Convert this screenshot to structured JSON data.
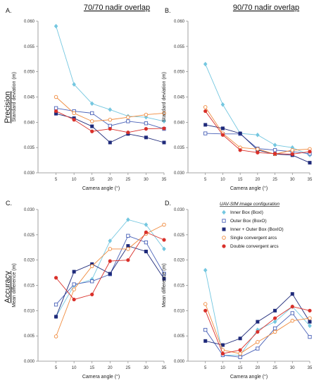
{
  "figure": {
    "column_titles": [
      "70/70 nadir overlap",
      "90/70 nadir overlap"
    ],
    "row_labels": [
      "Precision",
      "Accuracy"
    ]
  },
  "legend": {
    "title": "UAV-SfM image configuration",
    "placement": "inside panel D, top",
    "entries": [
      {
        "name": "Inner Box (BoxI)",
        "color": "#74c7e0",
        "marker": "diamond"
      },
      {
        "name": "Outer Box (BoxO)",
        "color": "#4a62b8",
        "marker": "square-open"
      },
      {
        "name": "Inner + Outer Box (BoxIO)",
        "color": "#1f2a7a",
        "marker": "square-filled"
      },
      {
        "name": "Single convergent arcs",
        "color": "#f08a3c",
        "marker": "circle-open"
      },
      {
        "name": "Double convergent arcs",
        "color": "#d9302a",
        "marker": "circle-filled"
      }
    ]
  },
  "chart_data": [
    {
      "panel": "A.",
      "type": "line",
      "xlabel": "Camera angle (°)",
      "ylabel": "Standard deviation (m)",
      "x": [
        5,
        10,
        15,
        20,
        25,
        30,
        35
      ],
      "xlim": [
        0,
        35
      ],
      "ylim": [
        0.03,
        0.06
      ],
      "yticks": [
        "0.030",
        "0.035",
        "0.040",
        "0.045",
        "0.050",
        "0.055",
        "0.060"
      ],
      "grid": false,
      "series": [
        {
          "name": "Inner Box (BoxI)",
          "values": [
            0.059,
            0.0475,
            0.0437,
            0.0425,
            0.0412,
            0.041,
            0.0402
          ]
        },
        {
          "name": "Outer Box (BoxO)",
          "values": [
            0.0428,
            0.0422,
            0.0418,
            0.0393,
            0.0402,
            0.0398,
            0.0387
          ]
        },
        {
          "name": "Inner + Outer Box (BoxIO)",
          "values": [
            0.0417,
            0.0408,
            0.0392,
            0.036,
            0.0377,
            0.037,
            0.036
          ]
        },
        {
          "name": "Single convergent arcs",
          "values": [
            0.045,
            0.0418,
            0.0402,
            0.0405,
            0.041,
            0.0415,
            0.0418
          ]
        },
        {
          "name": "Double convergent arcs",
          "values": [
            0.0422,
            0.0405,
            0.0382,
            0.0387,
            0.038,
            0.0387,
            0.0388
          ]
        }
      ]
    },
    {
      "panel": "B.",
      "type": "line",
      "xlabel": "Camera angle (°)",
      "ylabel": "Standard deviation (m)",
      "x": [
        5,
        10,
        15,
        20,
        25,
        30,
        35
      ],
      "xlim": [
        0,
        35
      ],
      "ylim": [
        0.03,
        0.06
      ],
      "yticks": [
        "0.030",
        "0.035",
        "0.040",
        "0.045",
        "0.050",
        "0.055",
        "0.060"
      ],
      "grid": false,
      "series": [
        {
          "name": "Inner Box (BoxI)",
          "values": [
            0.0515,
            0.0435,
            0.0378,
            0.0375,
            0.0355,
            0.035,
            0.0335
          ]
        },
        {
          "name": "Outer Box (BoxO)",
          "values": [
            0.0378,
            0.0377,
            0.0377,
            0.0348,
            0.0345,
            0.0342,
            0.0338
          ]
        },
        {
          "name": "Inner + Outer Box (BoxIO)",
          "values": [
            0.0395,
            0.0388,
            0.0378,
            0.0345,
            0.0337,
            0.0335,
            0.032
          ]
        },
        {
          "name": "Single convergent arcs",
          "values": [
            0.043,
            0.0378,
            0.035,
            0.0347,
            0.0337,
            0.0345,
            0.0347
          ]
        },
        {
          "name": "Double convergent arcs",
          "values": [
            0.0422,
            0.0375,
            0.0345,
            0.034,
            0.0338,
            0.0337,
            0.0342
          ]
        }
      ]
    },
    {
      "panel": "C.",
      "type": "line",
      "xlabel": "Camera angle (°)",
      "ylabel": "Mean difference (m)",
      "x": [
        5,
        10,
        15,
        20,
        25,
        30,
        35
      ],
      "xlim": [
        0,
        35
      ],
      "ylim": [
        0,
        0.03
      ],
      "yticks": [
        "0.000",
        "0.005",
        "0.010",
        "0.015",
        "0.020",
        "0.025",
        "0.030"
      ],
      "grid": false,
      "series": [
        {
          "name": "Inner Box (BoxI)",
          "values": [
            0.0088,
            0.015,
            0.0162,
            0.0238,
            0.028,
            0.027,
            0.0222
          ]
        },
        {
          "name": "Outer Box (BoxO)",
          "values": [
            0.0112,
            0.0152,
            0.0158,
            0.0172,
            0.0248,
            0.0235,
            0.0173
          ]
        },
        {
          "name": "Inner + Outer Box (BoxIO)",
          "values": [
            0.0088,
            0.0177,
            0.0192,
            0.0173,
            0.0228,
            0.0217,
            0.0163
          ]
        },
        {
          "name": "Single convergent arcs",
          "values": [
            0.0049,
            0.0142,
            0.0188,
            0.0222,
            0.0222,
            0.0252,
            0.027
          ]
        },
        {
          "name": "Double convergent arcs",
          "values": [
            0.0165,
            0.0122,
            0.0132,
            0.0198,
            0.02,
            0.0255,
            0.024
          ]
        }
      ]
    },
    {
      "panel": "D.",
      "type": "line",
      "xlabel": "Camera angle (°)",
      "ylabel": "Mean difference (m)",
      "x": [
        5,
        10,
        15,
        20,
        25,
        30,
        35
      ],
      "xlim": [
        0,
        35
      ],
      "ylim": [
        0,
        0.03
      ],
      "yticks": [
        "0.000",
        "0.005",
        "0.010",
        "0.015",
        "0.020",
        "0.025",
        "0.030"
      ],
      "grid": false,
      "series": [
        {
          "name": "Inner Box (BoxI)",
          "values": [
            0.018,
            0.0012,
            0.0012,
            0.0062,
            0.0078,
            0.0108,
            0.007
          ]
        },
        {
          "name": "Outer Box (BoxO)",
          "values": [
            0.0062,
            0.0012,
            0.0008,
            0.0025,
            0.0065,
            0.0095,
            0.0048
          ]
        },
        {
          "name": "Inner + Outer Box (BoxIO)",
          "values": [
            0.004,
            0.0032,
            0.0045,
            0.0078,
            0.01,
            0.0133,
            0.0078
          ]
        },
        {
          "name": "Single convergent arcs",
          "values": [
            0.0113,
            0.0022,
            0.0015,
            0.0038,
            0.0058,
            0.008,
            0.0085
          ]
        },
        {
          "name": "Double convergent arcs",
          "values": [
            0.01,
            0.0015,
            0.0022,
            0.0058,
            0.0085,
            0.0108,
            0.01
          ]
        }
      ]
    }
  ]
}
